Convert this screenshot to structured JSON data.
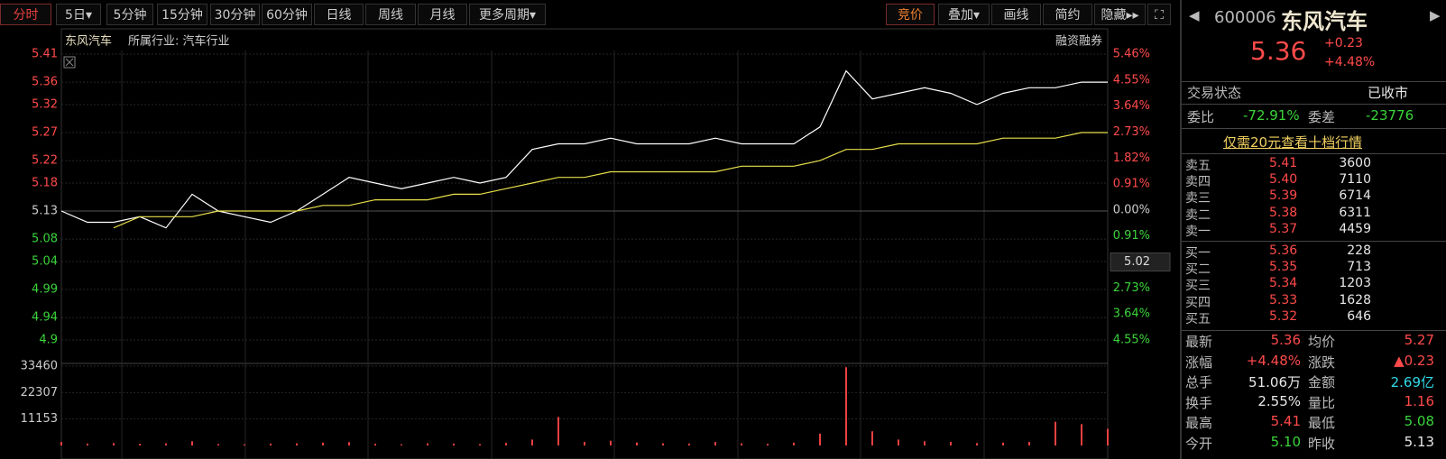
{
  "toolbar": {
    "left": [
      "分时",
      "5日▾",
      "5分钟",
      "15分钟",
      "30分钟",
      "60分钟",
      "日线",
      "周线",
      "月线",
      "更多周期▾"
    ],
    "right": [
      "竞价",
      "叠加▾",
      "画线",
      "简约",
      "隐藏▸▸"
    ]
  },
  "chart_header": {
    "name": "东风汽车",
    "industry": "所属行业: 汽车行业",
    "margin": "融资融券"
  },
  "chart_data": {
    "type": "line",
    "ylim": [
      4.9,
      5.41
    ],
    "yticks": [
      5.41,
      5.36,
      5.32,
      5.27,
      5.22,
      5.18,
      5.13,
      5.08,
      5.04,
      4.99,
      4.94,
      4.9
    ],
    "y2lim": [
      -4.55,
      5.46
    ],
    "y2ticks": [
      {
        "value": 5.46,
        "label": "5.46%"
      },
      {
        "value": 4.55,
        "label": "4.55%"
      },
      {
        "value": 3.64,
        "label": "3.64%"
      },
      {
        "value": 2.73,
        "label": "2.73%"
      },
      {
        "value": 1.82,
        "label": "1.82%"
      },
      {
        "value": 0.91,
        "label": "0.91%"
      },
      {
        "value": 0,
        "label": "0.00%"
      },
      {
        "value": -0.91,
        "label": "0.91%"
      },
      {
        "value": -2.73,
        "label": "2.73%"
      },
      {
        "value": -3.64,
        "label": "3.64%"
      },
      {
        "value": -4.55,
        "label": "4.55%"
      }
    ],
    "cursor_label": "5.02",
    "series": [
      {
        "color": "#ffffff",
        "values": [
          5.13,
          5.11,
          5.11,
          5.12,
          5.1,
          5.16,
          5.13,
          5.12,
          5.11,
          5.13,
          5.16,
          5.19,
          5.18,
          5.17,
          5.18,
          5.19,
          5.18,
          5.19,
          5.24,
          5.25,
          5.25,
          5.26,
          5.25,
          5.25,
          5.25,
          5.26,
          5.25,
          5.25,
          5.25,
          5.28,
          5.38,
          5.33,
          5.34,
          5.35,
          5.34,
          5.32,
          5.34,
          5.35,
          5.35,
          5.36,
          5.36
        ]
      },
      {
        "color": "#e8e04a",
        "values": [
          null,
          null,
          5.1,
          5.12,
          5.12,
          5.12,
          5.13,
          5.13,
          5.13,
          5.13,
          5.14,
          5.14,
          5.15,
          5.15,
          5.15,
          5.16,
          5.16,
          5.17,
          5.18,
          5.19,
          5.19,
          5.2,
          5.2,
          5.2,
          5.2,
          5.2,
          5.21,
          5.21,
          5.21,
          5.22,
          5.24,
          5.24,
          5.25,
          5.25,
          5.25,
          5.25,
          5.26,
          5.26,
          5.26,
          5.27,
          5.27
        ]
      }
    ],
    "volume": {
      "ylim": [
        0,
        33460
      ],
      "yticks": [
        33460,
        22307,
        11153
      ],
      "color": "#e84040",
      "values": [
        1500,
        800,
        1000,
        700,
        900,
        1800,
        600,
        500,
        800,
        900,
        1200,
        1400,
        700,
        500,
        900,
        800,
        600,
        1100,
        2500,
        12000,
        1500,
        2000,
        1300,
        900,
        800,
        1500,
        900,
        700,
        1200,
        5000,
        33000,
        6000,
        2500,
        1800,
        1500,
        1000,
        1200,
        1500,
        10000,
        9000,
        7000
      ]
    }
  },
  "quote": {
    "code": "600006",
    "name": "东风汽车",
    "price": "5.36",
    "change": "+0.23",
    "change_pct": "+4.48%",
    "status_label": "交易状态",
    "status": "已收市",
    "ratio_label": "委比",
    "ratio": "-72.91%",
    "diff_label": "委差",
    "diff": "-23776",
    "link": "仅需20元查看十档行情"
  },
  "order_book": {
    "sell": [
      [
        "卖五",
        "5.41",
        "3600"
      ],
      [
        "卖四",
        "5.40",
        "7110"
      ],
      [
        "卖三",
        "5.39",
        "6714"
      ],
      [
        "卖二",
        "5.38",
        "6311"
      ],
      [
        "卖一",
        "5.37",
        "4459"
      ]
    ],
    "buy": [
      [
        "买一",
        "5.36",
        "228"
      ],
      [
        "买二",
        "5.35",
        "713"
      ],
      [
        "买三",
        "5.34",
        "1203"
      ],
      [
        "买四",
        "5.33",
        "1628"
      ],
      [
        "买五",
        "5.32",
        "646"
      ]
    ]
  },
  "stats": [
    [
      "最新",
      "5.36",
      "均价",
      "5.27"
    ],
    [
      "涨幅",
      "+4.48%",
      "涨跌",
      "▲0.23"
    ],
    [
      "总手",
      "51.06万",
      "金额",
      "2.69亿"
    ],
    [
      "换手",
      "2.55%",
      "量比",
      "1.16"
    ],
    [
      "最高",
      "5.41",
      "最低",
      "5.08"
    ],
    [
      "今开",
      "5.10",
      "昨收",
      "5.13"
    ]
  ]
}
